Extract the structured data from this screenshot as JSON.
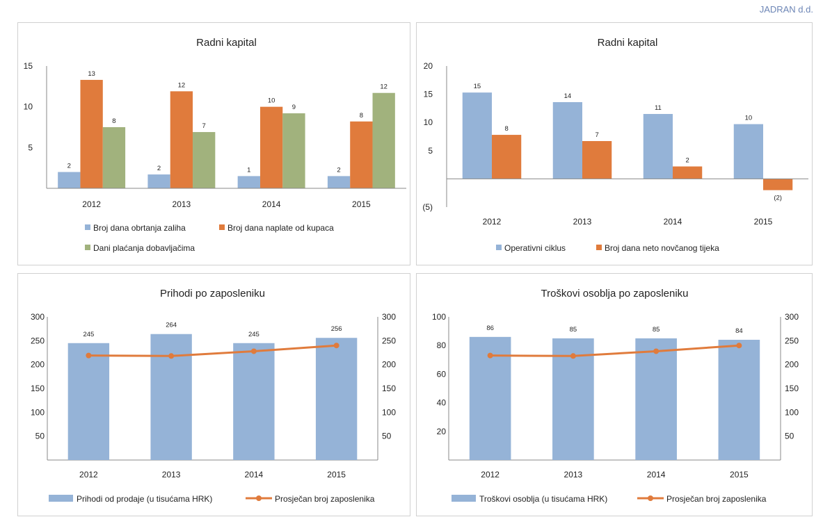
{
  "header": {
    "company": "JADRAN d.d."
  },
  "colors": {
    "blue": "#95b3d7",
    "orange": "#e07b3c",
    "green": "#a1b27d",
    "line": "#e07b3c"
  },
  "chart_data": [
    {
      "type": "bar",
      "title": "Radni kapital",
      "categories": [
        "2012",
        "2013",
        "2014",
        "2015"
      ],
      "series": [
        {
          "name": "Broj dana obrtanja zaliha",
          "values": [
            2,
            1.7,
            1.5,
            1.5
          ],
          "labels": [
            "2",
            "2",
            "1",
            "2"
          ]
        },
        {
          "name": "Broj dana naplate od kupaca",
          "values": [
            13.3,
            11.9,
            10,
            8.2
          ],
          "labels": [
            "13",
            "12",
            "10",
            "8"
          ]
        },
        {
          "name": "Dani plaćanja dobavljačima",
          "values": [
            7.5,
            6.9,
            9.2,
            11.7
          ],
          "labels": [
            "8",
            "7",
            "9",
            "12"
          ]
        }
      ],
      "ylim": [
        0,
        15
      ],
      "yticks": [
        5,
        10,
        15
      ],
      "ytick_labels": [
        "5",
        "10",
        "15"
      ],
      "grid": false,
      "legend": "bottom"
    },
    {
      "type": "bar",
      "title": "Radni kapital",
      "categories": [
        "2012",
        "2013",
        "2014",
        "2015"
      ],
      "series": [
        {
          "name": "Operativni ciklus",
          "values": [
            15.3,
            13.6,
            11.5,
            9.7
          ],
          "labels": [
            "15",
            "14",
            "11",
            "10"
          ]
        },
        {
          "name": "Broj dana neto novčanog tijeka",
          "values": [
            7.8,
            6.7,
            2.2,
            -2
          ],
          "labels": [
            "8",
            "7",
            "2",
            "(2)"
          ]
        }
      ],
      "ylim": [
        -5,
        20
      ],
      "yticks": [
        -5,
        5,
        10,
        15,
        20
      ],
      "ytick_labels": [
        "(5)",
        "5",
        "10",
        "15",
        "20"
      ],
      "grid": false,
      "legend": "bottom"
    },
    {
      "type": "bar+line",
      "title": "Prihodi po zaposleniku",
      "categories": [
        "2012",
        "2013",
        "2014",
        "2015"
      ],
      "bar_series": {
        "name": "Prihodi od prodaje (u tisućama HRK)",
        "values": [
          245,
          264,
          245,
          256
        ],
        "labels": [
          "245",
          "264",
          "245",
          "256"
        ]
      },
      "line_series": {
        "name": "Prosječan broj zaposlenika",
        "values": [
          219,
          218,
          228,
          240
        ]
      },
      "ylim_left": [
        0,
        300
      ],
      "yticks_left": [
        50,
        100,
        150,
        200,
        250,
        300
      ],
      "ylim_right": [
        0,
        300
      ],
      "yticks_right": [
        50,
        100,
        150,
        200,
        250,
        300
      ],
      "grid": false,
      "legend": "bottom"
    },
    {
      "type": "bar+line",
      "title": "Troškovi osoblja po zaposleniku",
      "categories": [
        "2012",
        "2013",
        "2014",
        "2015"
      ],
      "bar_series": {
        "name": "Troškovi osoblja (u tisućama HRK)",
        "values": [
          86,
          85,
          85,
          84
        ],
        "labels": [
          "86",
          "85",
          "85",
          "84"
        ]
      },
      "line_series": {
        "name": "Prosječan broj zaposlenika",
        "values": [
          219,
          218,
          228,
          240
        ]
      },
      "ylim_left": [
        0,
        100
      ],
      "yticks_left": [
        20,
        40,
        60,
        80,
        100
      ],
      "ylim_right": [
        0,
        300
      ],
      "yticks_right": [
        50,
        100,
        150,
        200,
        250,
        300
      ],
      "grid": false,
      "legend": "bottom"
    }
  ]
}
